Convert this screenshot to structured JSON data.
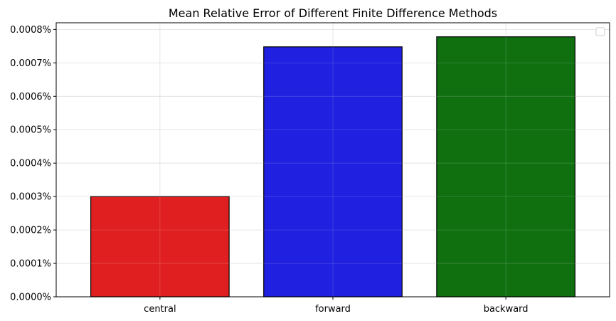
{
  "chart_data": {
    "type": "bar",
    "title": "Mean Relative Error of Different Finite Difference Methods",
    "xlabel": "",
    "ylabel": "",
    "categories": [
      "central",
      "forward",
      "backward"
    ],
    "values": [
      0.0003,
      0.000748,
      0.000778
    ],
    "colors": [
      "#e02020",
      "#2020e0",
      "#107010"
    ],
    "ylim": [
      0,
      0.00082
    ],
    "yticks": [
      0,
      0.0001,
      0.0002,
      0.0003,
      0.0004,
      0.0005,
      0.0006,
      0.0007,
      0.0008
    ],
    "ytick_labels": [
      "0.0000%",
      "0.0001%",
      "0.0002%",
      "0.0003%",
      "0.0004%",
      "0.0005%",
      "0.0006%",
      "0.0007%",
      "0.0008%"
    ],
    "grid": true,
    "legend": "empty, upper right"
  }
}
